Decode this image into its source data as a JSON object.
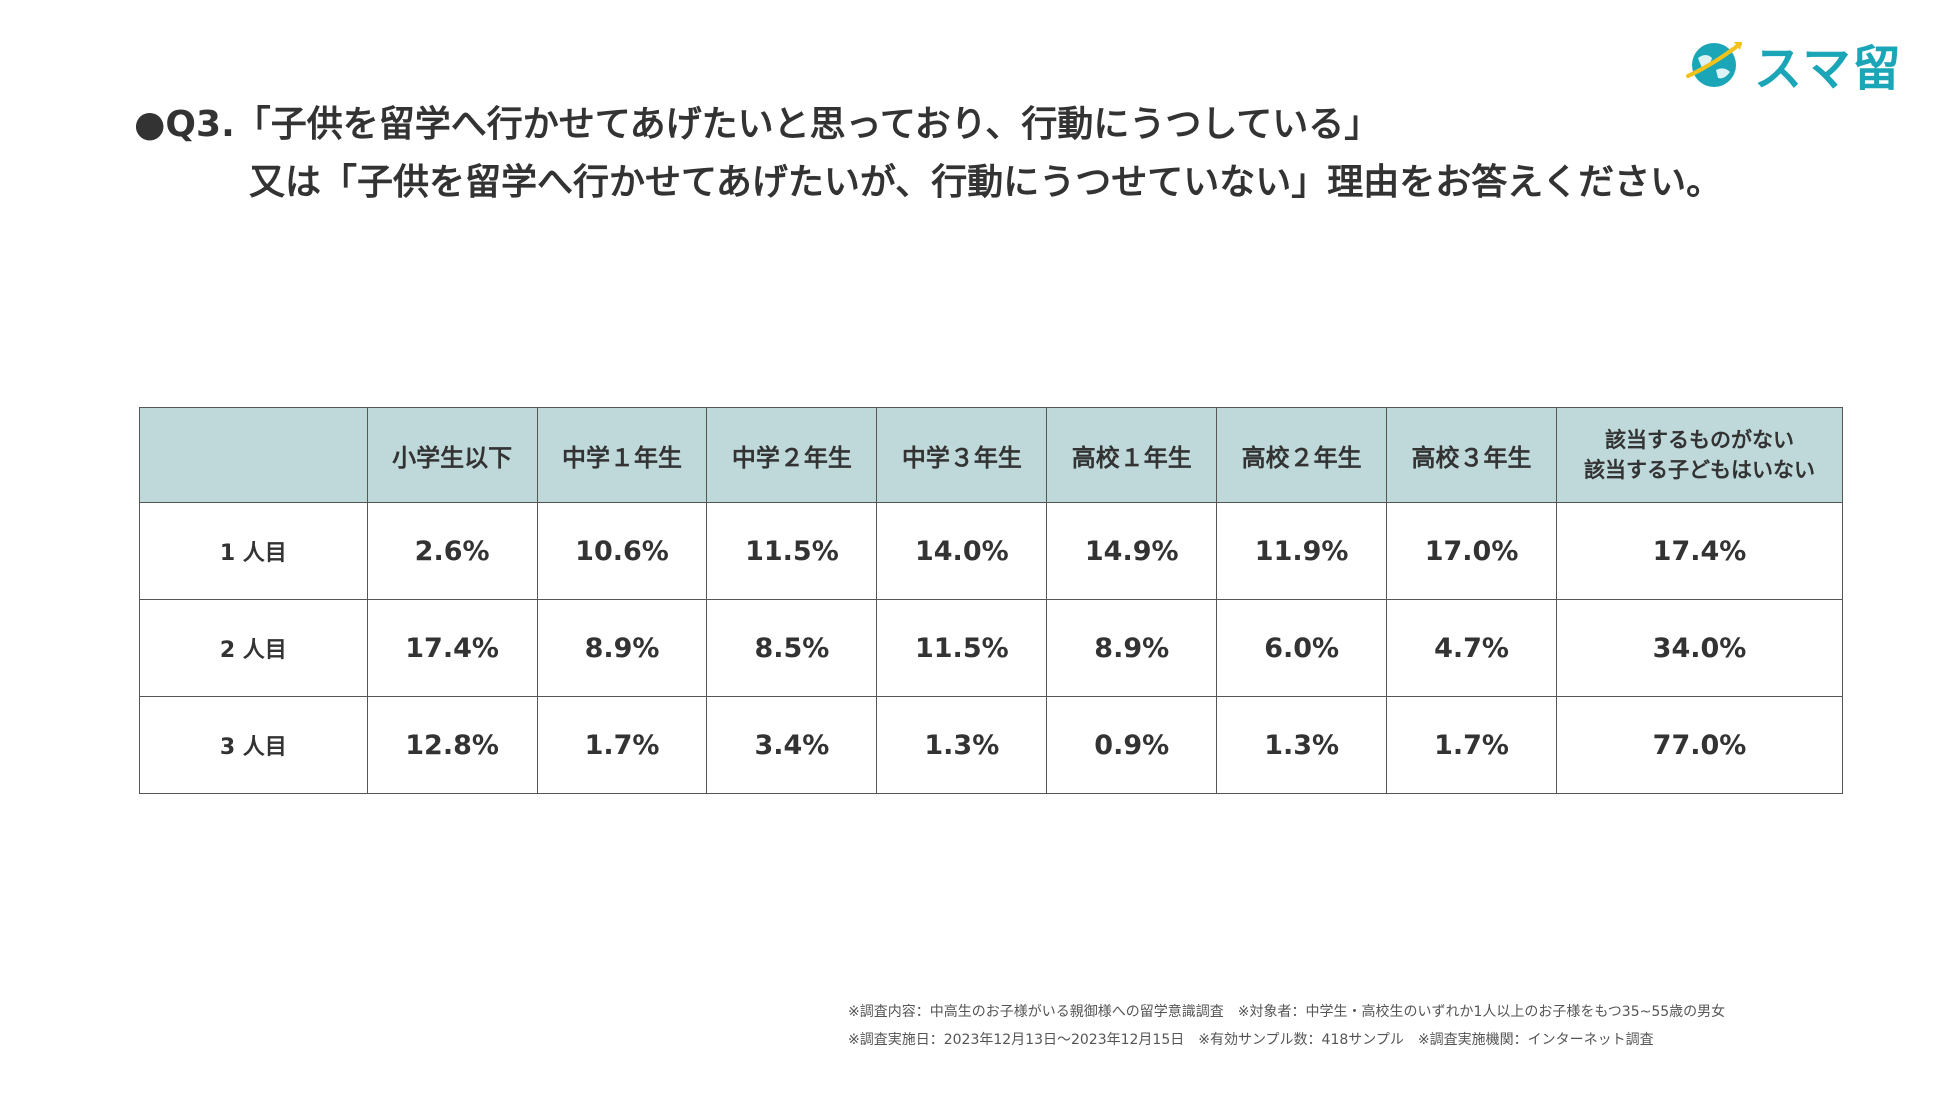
{
  "logo": {
    "text": "スマ留",
    "color": "#1ba6b8"
  },
  "title": {
    "line1": "●Q3.「子供を留学へ行かせてあげたいと思っており、行動にうつしている」",
    "line2": "又は「子供を留学へ行かせてあげたいが、行動にうつせていない」理由をお答えください。"
  },
  "table": {
    "columns": [
      "",
      "小学生以下",
      "中学１年生",
      "中学２年生",
      "中学３年生",
      "高校１年生",
      "高校２年生",
      "高校３年生",
      "該当するものがない 該当する子どもはいない"
    ],
    "last_column_lines": [
      "該当するものがない",
      "該当する子どもはいない"
    ],
    "rows": [
      {
        "label": "1 人目",
        "values": [
          "2.6%",
          "10.6%",
          "11.5%",
          "14.0%",
          "14.9%",
          "11.9%",
          "17.0%",
          "17.4%"
        ]
      },
      {
        "label": "2 人目",
        "values": [
          "17.4%",
          "8.9%",
          "8.5%",
          "11.5%",
          "8.9%",
          "6.0%",
          "4.7%",
          "34.0%"
        ]
      },
      {
        "label": "3 人目",
        "values": [
          "12.8%",
          "1.7%",
          "3.4%",
          "1.3%",
          "0.9%",
          "1.3%",
          "1.7%",
          "77.0%"
        ]
      }
    ],
    "header_color": "#bfd9db"
  },
  "footer": {
    "line1": "※調査内容：中高生のお子様がいる親御様への留学意識調査　※対象者：中学生・高校生のいずれか1人以上のお子様をもつ35~55歳の男女",
    "line2": "※調査実施日：2023年12月13日～2023年12月15日　※有効サンプル数：418サンプル　※調査実施機関：インターネット調査"
  }
}
